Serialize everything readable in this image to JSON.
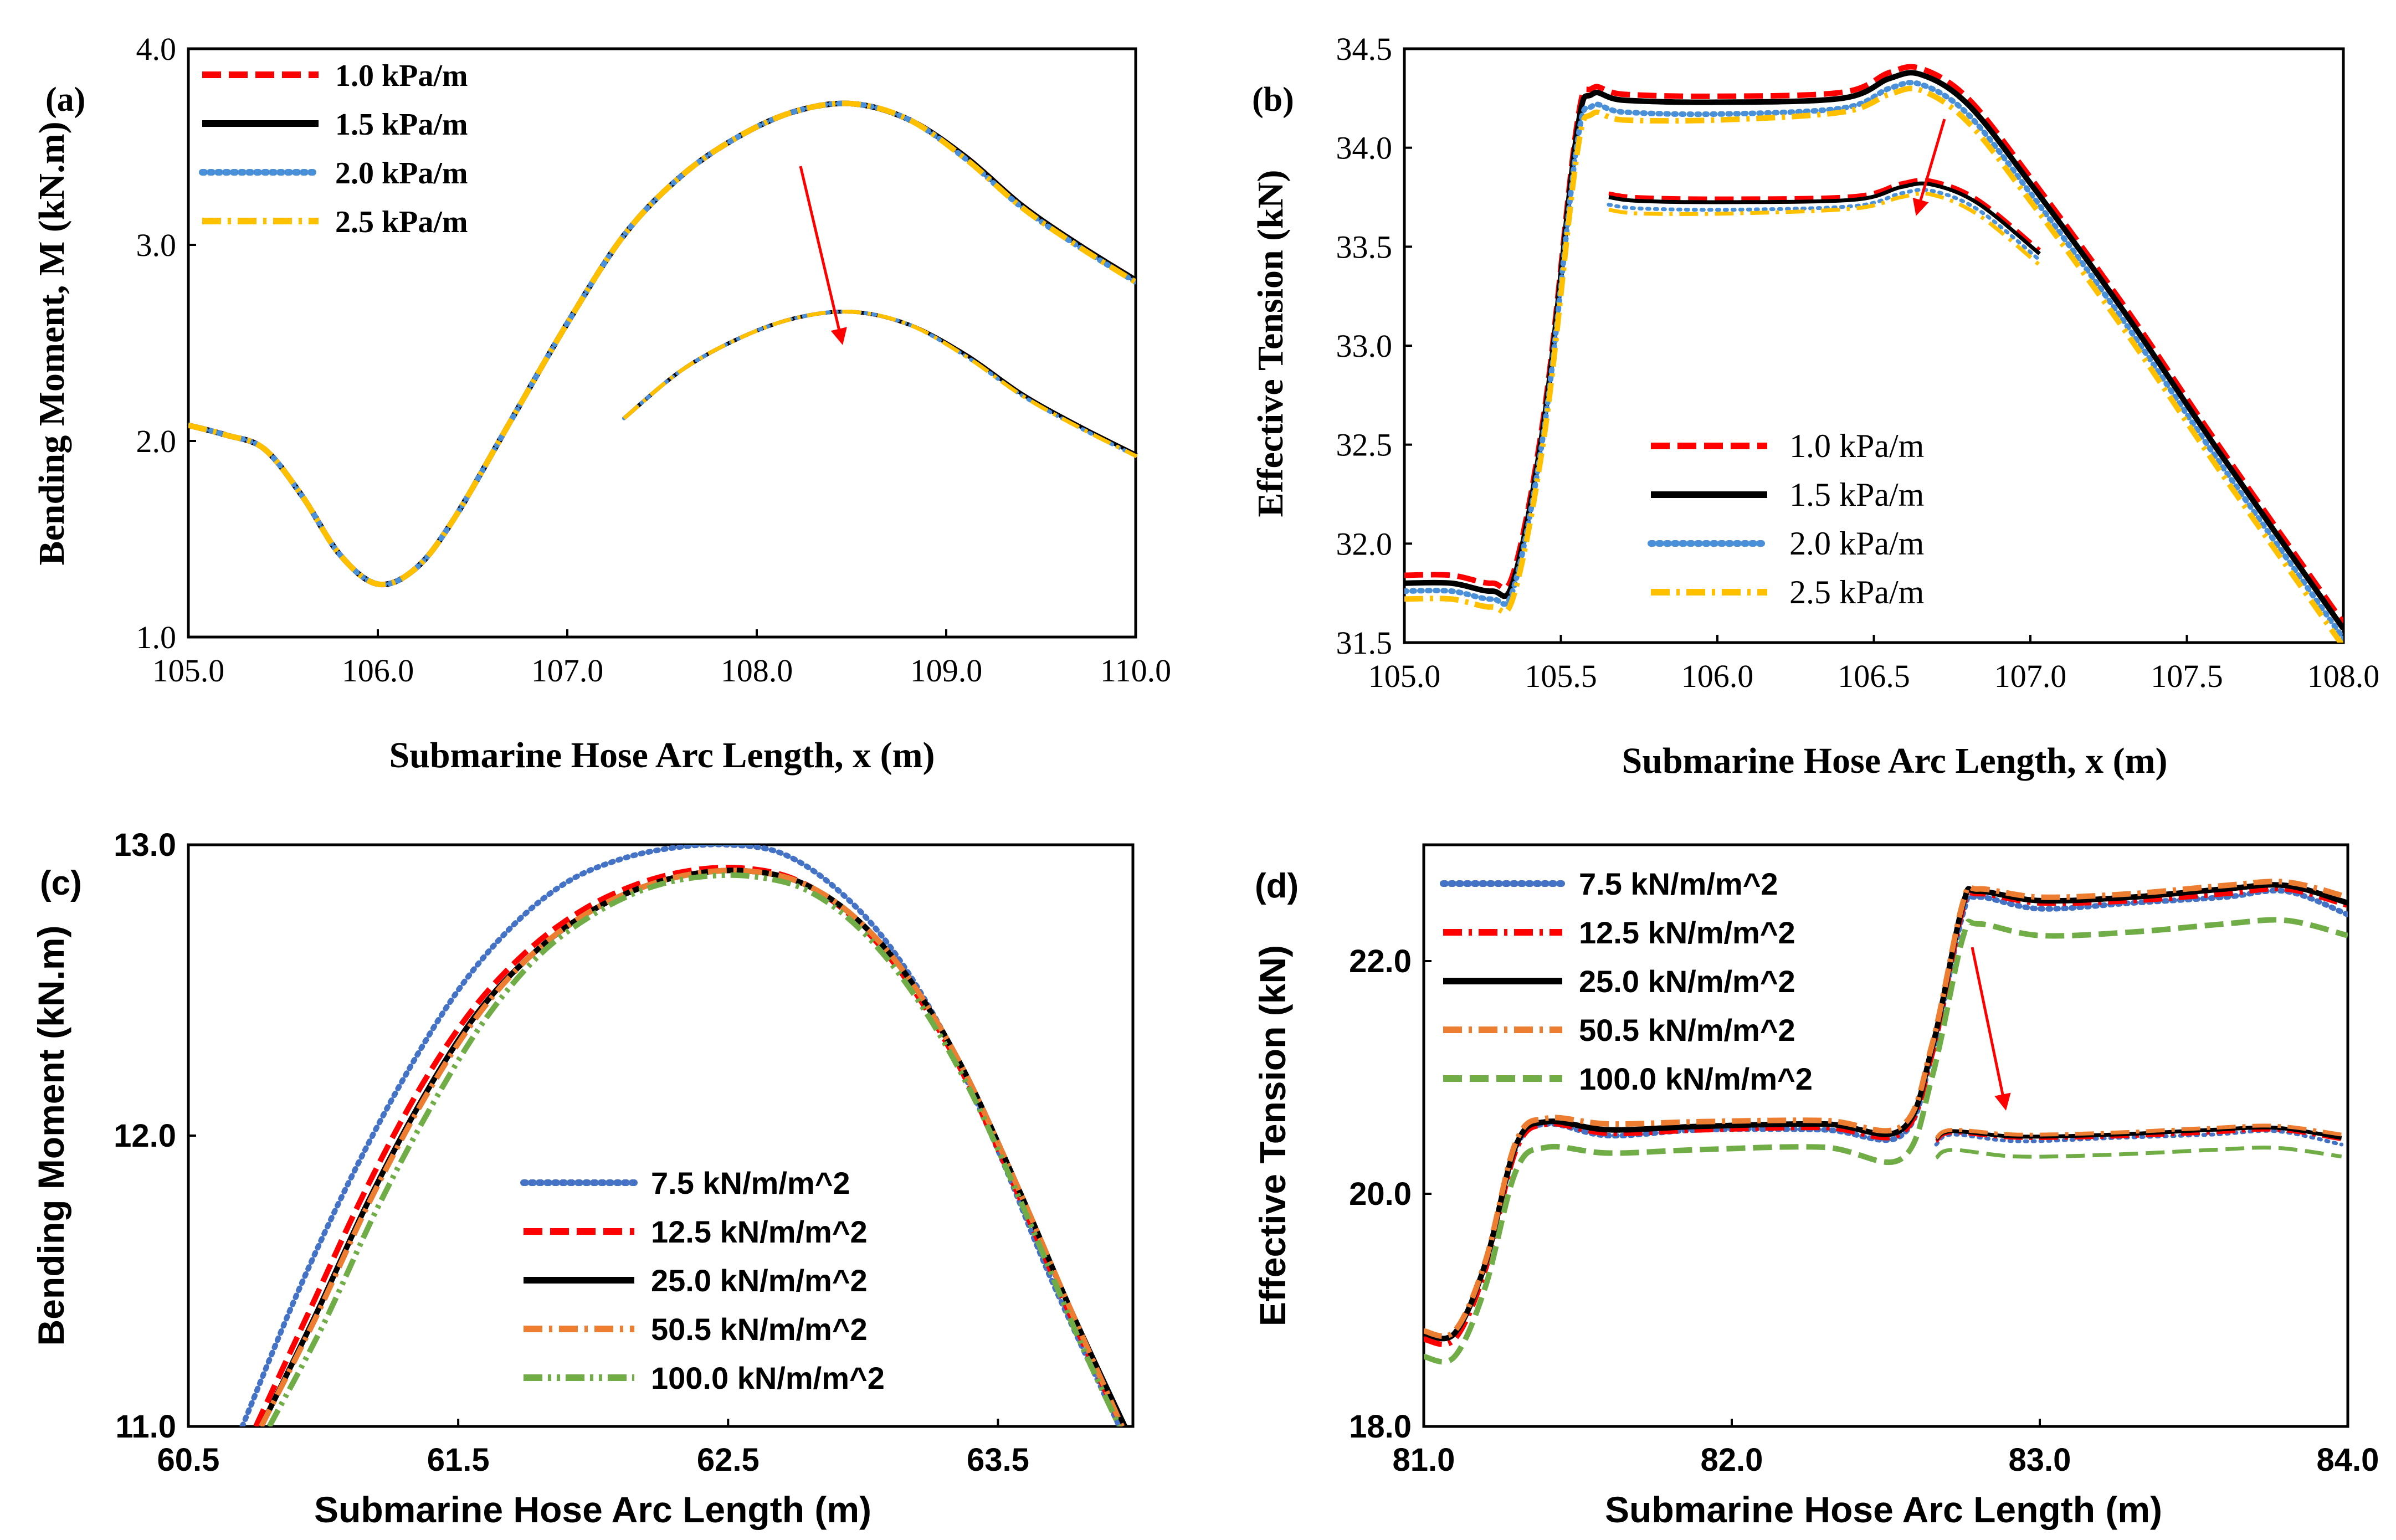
{
  "chart_data": [
    {
      "panel": "(a)",
      "type": "line",
      "xlabel": "Submarine Hose Arc Length, x (m)",
      "ylabel": "Bending Moment, M (kN.m)",
      "xlim": [
        105.0,
        110.0
      ],
      "ylim": [
        1.0,
        4.0
      ],
      "xticks": [
        "105.0",
        "106.0",
        "107.0",
        "108.0",
        "109.0",
        "110.0"
      ],
      "yticks": [
        "1.0",
        "2.0",
        "3.0",
        "4.0"
      ],
      "legend_position": "top-left",
      "series": [
        {
          "name": "1.0 kPa/m",
          "color": "#ff0000",
          "dash": "dash",
          "x": [
            105.0,
            105.2,
            105.4,
            105.6,
            105.8,
            106.0,
            106.2,
            106.4,
            106.7,
            107.0,
            107.3,
            107.6,
            107.9,
            108.2,
            108.5,
            108.8,
            109.1,
            109.4,
            109.7,
            110.0
          ],
          "y": [
            2.08,
            2.03,
            1.96,
            1.72,
            1.42,
            1.27,
            1.35,
            1.6,
            2.1,
            2.6,
            3.05,
            3.35,
            3.55,
            3.68,
            3.72,
            3.64,
            3.45,
            3.2,
            3.0,
            2.82
          ]
        },
        {
          "name": "1.5 kPa/m",
          "color": "#000000",
          "dash": "solid",
          "x": [
            105.0,
            105.2,
            105.4,
            105.6,
            105.8,
            106.0,
            106.2,
            106.4,
            106.7,
            107.0,
            107.3,
            107.6,
            107.9,
            108.2,
            108.5,
            108.8,
            109.1,
            109.4,
            109.7,
            110.0
          ],
          "y": [
            2.08,
            2.03,
            1.96,
            1.72,
            1.42,
            1.27,
            1.35,
            1.6,
            2.1,
            2.6,
            3.05,
            3.35,
            3.55,
            3.68,
            3.72,
            3.64,
            3.45,
            3.2,
            3.0,
            2.82
          ]
        },
        {
          "name": "2.0 kPa/m",
          "color": "#4a90d9",
          "dash": "dot",
          "x": [
            105.0,
            105.2,
            105.4,
            105.6,
            105.8,
            106.0,
            106.2,
            106.4,
            106.7,
            107.0,
            107.3,
            107.6,
            107.9,
            108.2,
            108.5,
            108.8,
            109.1,
            109.4,
            109.7,
            110.0
          ],
          "y": [
            2.08,
            2.03,
            1.96,
            1.72,
            1.42,
            1.27,
            1.35,
            1.6,
            2.1,
            2.6,
            3.05,
            3.35,
            3.55,
            3.68,
            3.72,
            3.64,
            3.44,
            3.19,
            2.99,
            2.81
          ]
        },
        {
          "name": "2.5 kPa/m",
          "color": "#ffc000",
          "dash": "dashdot",
          "x": [
            105.0,
            105.2,
            105.4,
            105.6,
            105.8,
            106.0,
            106.2,
            106.4,
            106.7,
            107.0,
            107.3,
            107.6,
            107.9,
            108.2,
            108.5,
            108.8,
            109.1,
            109.4,
            109.7,
            110.0
          ],
          "y": [
            2.08,
            2.03,
            1.96,
            1.72,
            1.42,
            1.27,
            1.35,
            1.6,
            2.1,
            2.6,
            3.05,
            3.35,
            3.55,
            3.68,
            3.72,
            3.64,
            3.44,
            3.19,
            2.99,
            2.81
          ]
        }
      ]
    },
    {
      "panel": "(b)",
      "type": "line",
      "xlabel": "Submarine Hose Arc Length, x (m)",
      "ylabel": "Effective Tension (kN)",
      "xlim": [
        105.0,
        108.0
      ],
      "ylim": [
        31.5,
        34.5
      ],
      "xticks": [
        "105.0",
        "105.5",
        "106.0",
        "106.5",
        "107.0",
        "107.5",
        "108.0"
      ],
      "yticks": [
        "31.5",
        "32.0",
        "32.5",
        "33.0",
        "33.5",
        "34.0",
        "34.5"
      ],
      "legend_position": "bottom-center",
      "series": [
        {
          "name": "1.0 kPa/m",
          "color": "#ff0000",
          "dash": "dash",
          "x": [
            105.0,
            105.15,
            105.28,
            105.35,
            105.45,
            105.55,
            105.6,
            105.7,
            106.0,
            106.4,
            106.55,
            106.65,
            106.8,
            107.0,
            107.3,
            107.6,
            108.0
          ],
          "y": [
            31.84,
            31.84,
            31.8,
            31.86,
            32.7,
            34.1,
            34.3,
            34.27,
            34.26,
            34.28,
            34.38,
            34.4,
            34.25,
            33.85,
            33.2,
            32.5,
            31.6
          ]
        },
        {
          "name": "1.5 kPa/m",
          "color": "#000000",
          "dash": "solid",
          "x": [
            105.0,
            105.15,
            105.28,
            105.35,
            105.45,
            105.55,
            105.6,
            105.7,
            106.0,
            106.4,
            106.55,
            106.65,
            106.8,
            107.0,
            107.3,
            107.6,
            108.0
          ],
          "y": [
            31.8,
            31.8,
            31.76,
            31.82,
            32.66,
            34.06,
            34.27,
            34.24,
            34.23,
            34.25,
            34.35,
            34.37,
            34.22,
            33.82,
            33.17,
            32.47,
            31.57
          ]
        },
        {
          "name": "2.0 kPa/m",
          "color": "#4a90d9",
          "dash": "dot",
          "x": [
            105.0,
            105.15,
            105.28,
            105.35,
            105.45,
            105.55,
            105.6,
            105.7,
            106.0,
            106.4,
            106.55,
            106.65,
            106.8,
            107.0,
            107.3,
            107.6,
            108.0
          ],
          "y": [
            31.76,
            31.76,
            31.72,
            31.78,
            32.62,
            34.0,
            34.21,
            34.18,
            34.17,
            34.2,
            34.3,
            34.32,
            34.17,
            33.77,
            33.12,
            32.42,
            31.52
          ]
        },
        {
          "name": "2.5 kPa/m",
          "color": "#ffc000",
          "dash": "dashdot",
          "x": [
            105.0,
            105.15,
            105.28,
            105.35,
            105.45,
            105.55,
            105.6,
            105.7,
            106.0,
            106.4,
            106.55,
            106.65,
            106.8,
            107.0,
            107.3,
            107.6,
            108.0
          ],
          "y": [
            31.72,
            31.72,
            31.68,
            31.74,
            32.58,
            33.95,
            34.17,
            34.14,
            34.14,
            34.18,
            34.27,
            34.29,
            34.13,
            33.73,
            33.08,
            32.38,
            31.48
          ]
        }
      ]
    },
    {
      "panel": "(c)",
      "type": "line",
      "xlabel": "Submarine Hose Arc Length (m)",
      "ylabel": "Bending Moment (kN.m)",
      "xlim": [
        60.5,
        64.0
      ],
      "ylim": [
        11.0,
        13.0
      ],
      "xticks": [
        "60.5",
        "61.5",
        "62.5",
        "63.5"
      ],
      "yticks": [
        "11.0",
        "12.0",
        "13.0"
      ],
      "legend_position": "bottom-center",
      "series": [
        {
          "name": "7.5 kN/m/m^2",
          "color": "#4472c4",
          "dash": "dot",
          "x": [
            60.7,
            60.9,
            61.1,
            61.3,
            61.5,
            61.7,
            61.9,
            62.1,
            62.3,
            62.5,
            62.7,
            62.9,
            63.1,
            63.3,
            63.5,
            63.7,
            63.95
          ],
          "y": [
            11.0,
            11.45,
            11.85,
            12.2,
            12.5,
            12.72,
            12.87,
            12.95,
            12.99,
            13.0,
            12.97,
            12.85,
            12.65,
            12.35,
            11.95,
            11.5,
            11.0
          ]
        },
        {
          "name": "12.5 kN/m/m^2",
          "color": "#ff0000",
          "dash": "dash",
          "x": [
            60.75,
            60.95,
            61.15,
            61.35,
            61.55,
            61.75,
            61.95,
            62.15,
            62.35,
            62.55,
            62.75,
            62.95,
            63.15,
            63.35,
            63.55,
            63.75,
            63.96
          ],
          "y": [
            11.0,
            11.4,
            11.8,
            12.15,
            12.43,
            12.63,
            12.77,
            12.86,
            12.91,
            12.92,
            12.88,
            12.76,
            12.55,
            12.25,
            11.85,
            11.42,
            11.0
          ]
        },
        {
          "name": "25.0 kN/m/m^2",
          "color": "#000000",
          "dash": "solid",
          "x": [
            60.77,
            60.97,
            61.17,
            61.37,
            61.57,
            61.77,
            61.97,
            62.17,
            62.37,
            62.57,
            62.77,
            62.97,
            63.17,
            63.37,
            63.57,
            63.77,
            63.97
          ],
          "y": [
            11.0,
            11.38,
            11.78,
            12.13,
            12.42,
            12.62,
            12.76,
            12.85,
            12.9,
            12.91,
            12.87,
            12.75,
            12.54,
            12.23,
            11.83,
            11.4,
            11.0
          ]
        },
        {
          "name": "50.5 kN/m/m^2",
          "color": "#ed7d31",
          "dash": "dashdot",
          "x": [
            60.77,
            60.97,
            61.17,
            61.37,
            61.57,
            61.77,
            61.97,
            62.17,
            62.37,
            62.57,
            62.77,
            62.97,
            63.17,
            63.37,
            63.57,
            63.77,
            63.96
          ],
          "y": [
            11.0,
            11.37,
            11.77,
            12.12,
            12.41,
            12.62,
            12.76,
            12.85,
            12.9,
            12.91,
            12.87,
            12.75,
            12.54,
            12.23,
            11.83,
            11.4,
            11.0
          ]
        },
        {
          "name": "100.0 kN/m/m^2",
          "color": "#70ad47",
          "dash": "dashdotdot",
          "x": [
            60.8,
            61.0,
            61.2,
            61.4,
            61.6,
            61.8,
            62.0,
            62.2,
            62.4,
            62.6,
            62.8,
            63.0,
            63.2,
            63.4,
            63.6,
            63.8,
            63.95
          ],
          "y": [
            11.0,
            11.35,
            11.75,
            12.1,
            12.4,
            12.62,
            12.76,
            12.85,
            12.89,
            12.89,
            12.84,
            12.7,
            12.47,
            12.15,
            11.74,
            11.3,
            11.0
          ]
        }
      ]
    },
    {
      "panel": "(d)",
      "type": "line",
      "xlabel": "Submarine Hose Arc Length (m)",
      "ylabel": "Effective Tension (kN)",
      "xlim": [
        81.0,
        84.0
      ],
      "ylim": [
        18.0,
        23.0
      ],
      "xticks": [
        "81.0",
        "82.0",
        "83.0",
        "84.0"
      ],
      "yticks": [
        "18.0",
        "20.0",
        "22.0"
      ],
      "legend_position": "top-left",
      "series": [
        {
          "name": "7.5 kN/m/m^2",
          "color": "#4472c4",
          "dash": "dot",
          "x": [
            81.0,
            81.1,
            81.2,
            81.3,
            81.4,
            81.6,
            81.9,
            82.3,
            82.55,
            82.65,
            82.75,
            82.8,
            83.0,
            83.3,
            83.6,
            83.8,
            84.0
          ],
          "y": [
            18.8,
            18.8,
            19.4,
            20.4,
            20.6,
            20.5,
            20.55,
            20.55,
            20.5,
            21.2,
            22.4,
            22.55,
            22.45,
            22.5,
            22.55,
            22.6,
            22.4
          ]
        },
        {
          "name": "12.5 kN/m/m^2",
          "color": "#ff0000",
          "dash": "dashdot",
          "x": [
            81.0,
            81.1,
            81.2,
            81.3,
            81.4,
            81.6,
            81.9,
            82.3,
            82.55,
            82.65,
            82.75,
            82.8,
            83.0,
            83.3,
            83.6,
            83.8,
            84.0
          ],
          "y": [
            18.75,
            18.75,
            19.35,
            20.38,
            20.6,
            20.52,
            20.55,
            20.57,
            20.52,
            21.2,
            22.45,
            22.58,
            22.5,
            22.52,
            22.58,
            22.62,
            22.48
          ]
        },
        {
          "name": "25.0 kN/m/m^2",
          "color": "#000000",
          "dash": "solid",
          "x": [
            81.0,
            81.1,
            81.2,
            81.3,
            81.4,
            81.6,
            81.9,
            82.3,
            82.55,
            82.65,
            82.75,
            82.8,
            83.0,
            83.3,
            83.6,
            83.8,
            84.0
          ],
          "y": [
            18.8,
            18.8,
            19.4,
            20.42,
            20.62,
            20.55,
            20.58,
            20.6,
            20.55,
            21.25,
            22.48,
            22.6,
            22.52,
            22.55,
            22.62,
            22.65,
            22.5
          ]
        },
        {
          "name": "50.5 kN/m/m^2",
          "color": "#ed7d31",
          "dash": "dashdot",
          "x": [
            81.0,
            81.1,
            81.2,
            81.3,
            81.4,
            81.6,
            81.9,
            82.3,
            82.55,
            82.65,
            82.75,
            82.8,
            83.0,
            83.3,
            83.6,
            83.8,
            84.0
          ],
          "y": [
            18.82,
            18.82,
            19.42,
            20.45,
            20.65,
            20.6,
            20.62,
            20.63,
            20.58,
            21.28,
            22.5,
            22.62,
            22.55,
            22.58,
            22.65,
            22.68,
            22.55
          ]
        },
        {
          "name": "100.0 kN/m/m^2",
          "color": "#70ad47",
          "dash": "dash",
          "x": [
            81.0,
            81.1,
            81.2,
            81.3,
            81.4,
            81.6,
            81.9,
            82.3,
            82.55,
            82.65,
            82.75,
            82.8,
            83.0,
            83.3,
            83.6,
            83.8,
            84.0
          ],
          "y": [
            18.6,
            18.6,
            19.2,
            20.2,
            20.4,
            20.35,
            20.38,
            20.4,
            20.3,
            21.0,
            22.2,
            22.32,
            22.22,
            22.25,
            22.32,
            22.35,
            22.22
          ]
        }
      ]
    }
  ]
}
